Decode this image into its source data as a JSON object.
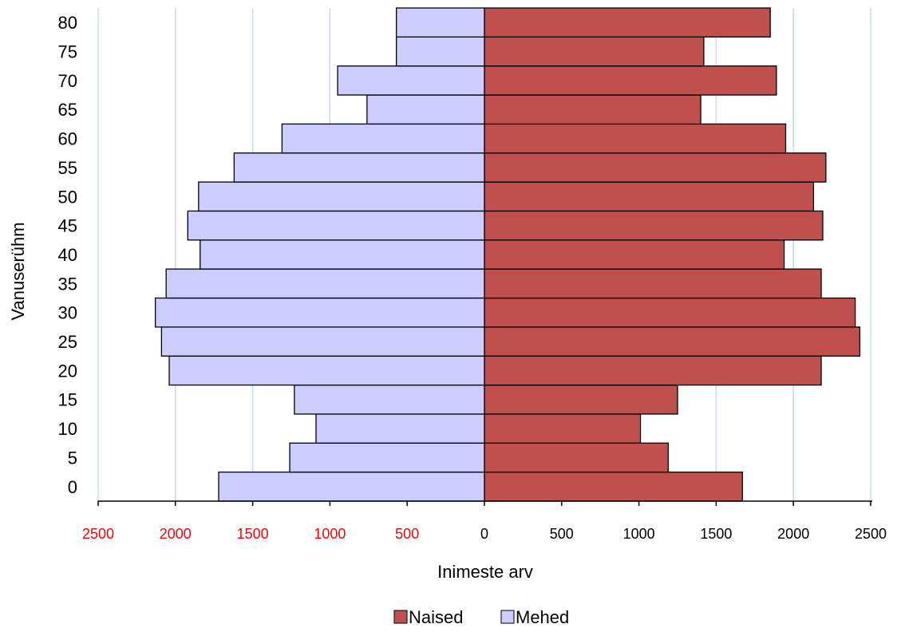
{
  "chart_data": {
    "type": "bar",
    "orientation": "horizontal",
    "chart_subtype": "population pyramid",
    "categories": [
      "0",
      "5",
      "10",
      "15",
      "20",
      "25",
      "30",
      "35",
      "40",
      "45",
      "50",
      "55",
      "60",
      "65",
      "70",
      "75",
      "80"
    ],
    "series": [
      {
        "name": "Naised",
        "color": "#c0504d",
        "values": [
          1670,
          1190,
          1010,
          1250,
          2180,
          2430,
          2400,
          2180,
          1940,
          2190,
          2130,
          2210,
          1950,
          1400,
          1890,
          1420,
          1850
        ]
      },
      {
        "name": "Mehed",
        "color": "#ccccff",
        "values": [
          1720,
          1260,
          1090,
          1230,
          2040,
          2090,
          2130,
          2060,
          1840,
          1920,
          1850,
          1620,
          1310,
          760,
          950,
          570,
          570
        ]
      }
    ],
    "xlabel": "Inimeste arv",
    "ylabel": "Vanuserühm",
    "xlim": [
      -2500,
      2500
    ],
    "x_ticks": [
      -2500,
      -2000,
      -1500,
      -1000,
      -500,
      0,
      500,
      1000,
      1500,
      2000,
      2500
    ],
    "x_tick_labels": [
      "2500",
      "2000",
      "1500",
      "1000",
      "500",
      "0",
      "500",
      "1000",
      "1500",
      "2000",
      "2500"
    ],
    "negative_tick_label_color": "#ff0000",
    "vertical_gridlines": true,
    "gridline_color": "#c6d9f1",
    "legend_position": "bottom",
    "legend": [
      "Naised",
      "Mehed"
    ]
  }
}
